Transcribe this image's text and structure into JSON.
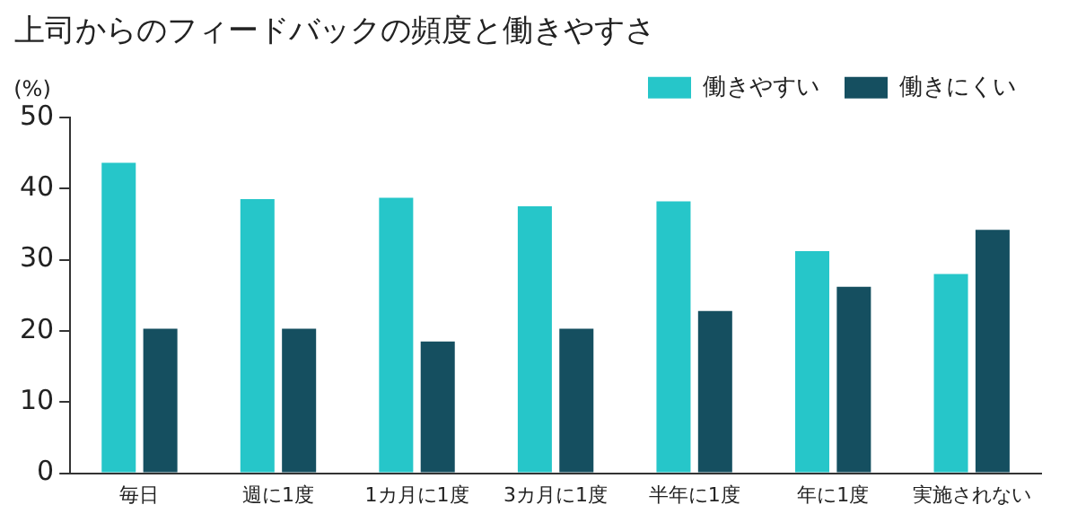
{
  "chart_data": {
    "type": "bar",
    "title": "上司からのフィードバックの頻度と働きやすさ",
    "ylabel": "(%)",
    "categories": [
      "毎日",
      "週に1度",
      "1カ月に1度",
      "3カ月に1度",
      "半年に1度",
      "年に1度",
      "実施されない"
    ],
    "series": [
      {
        "name": "働きやすい",
        "color": "#26c6c9",
        "values": [
          43.6,
          38.5,
          38.7,
          37.5,
          38.2,
          31.2,
          28.0
        ]
      },
      {
        "name": "働きにくい",
        "color": "#154f60",
        "values": [
          20.3,
          20.3,
          18.5,
          20.3,
          22.8,
          26.2,
          34.2
        ]
      }
    ],
    "ylim": [
      0,
      50
    ],
    "yticks": [
      0,
      10,
      20,
      30,
      40,
      50
    ],
    "grid": false,
    "legend": "top right"
  }
}
